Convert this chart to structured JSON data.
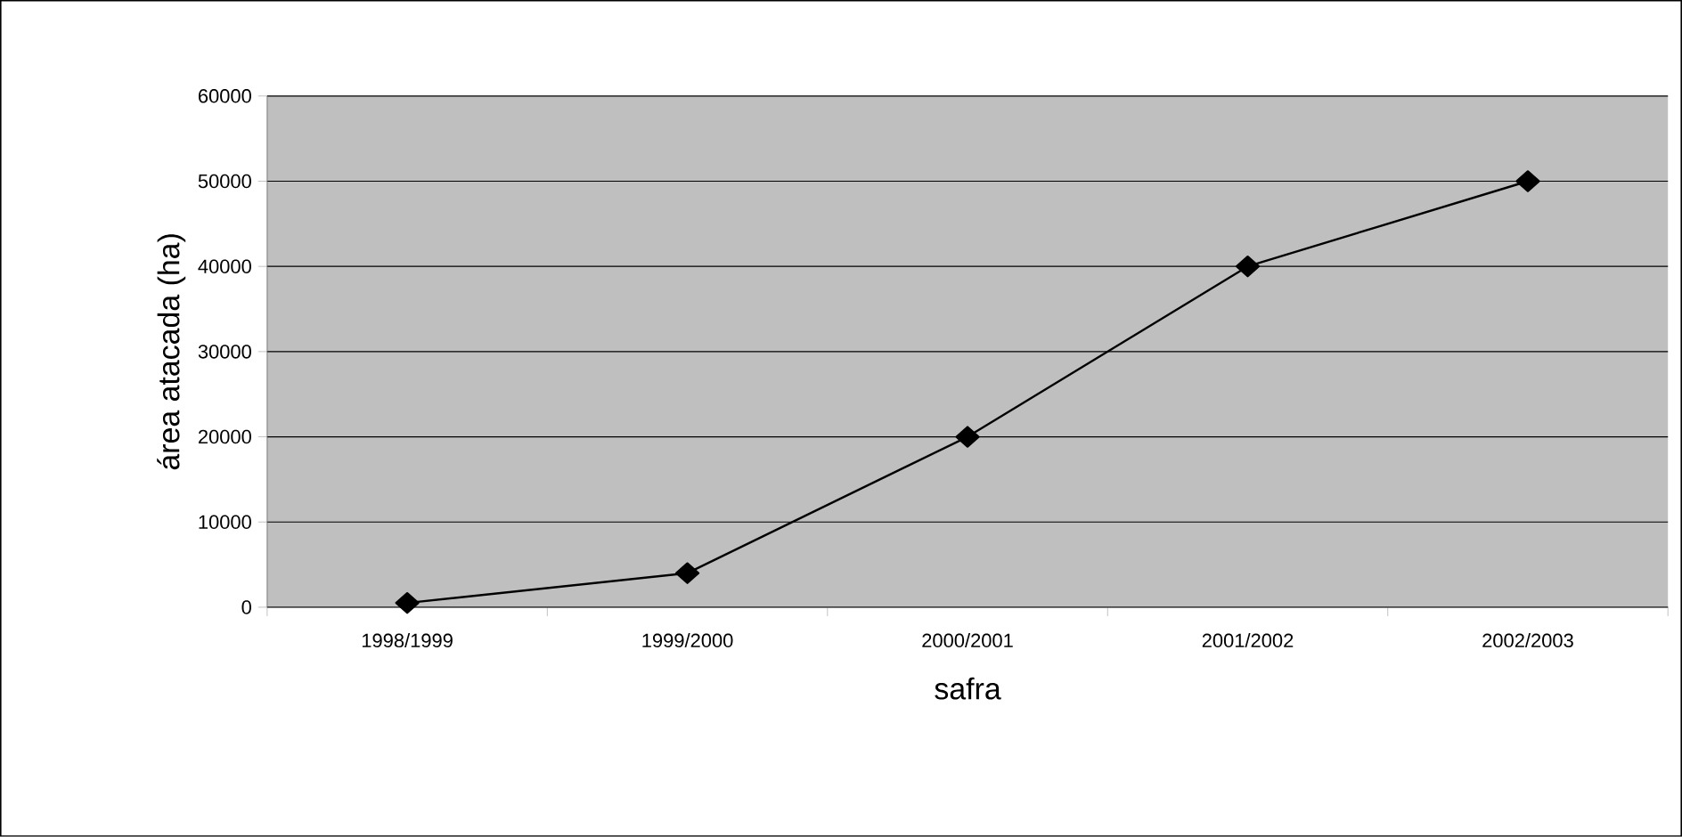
{
  "chart_data": {
    "type": "line",
    "xlabel": "safra",
    "ylabel": "área atacada (ha)",
    "categories": [
      "1998/1999",
      "1999/2000",
      "2000/2001",
      "2001/2002",
      "2002/2003"
    ],
    "series": [
      {
        "color": "#000000",
        "values": [
          500,
          4000,
          20000,
          40000,
          50000
        ]
      }
    ],
    "ylim": [
      0,
      60000
    ],
    "yticks": [
      0,
      10000,
      20000,
      30000,
      40000,
      50000,
      60000
    ],
    "grid": "y",
    "marker": "diamond",
    "line_style": "solid"
  }
}
